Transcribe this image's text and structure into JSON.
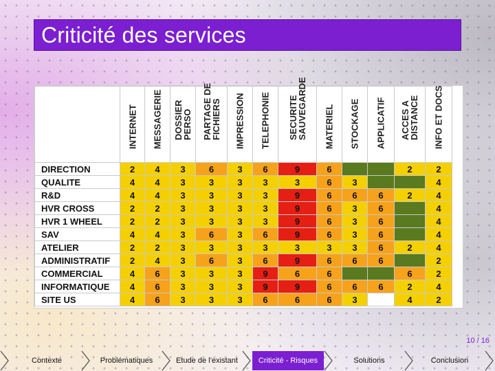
{
  "title": "Criticité des services",
  "page_indicator": "10 / 16",
  "columns": [
    "INTERNET",
    "MESSAGERIE",
    "DOSSIER\nPERSO",
    "PARTAGE DE\nFICHIERS",
    "IMPRESSION",
    "TELEPHONIE",
    "SECURITE\nSAUVEGARDE",
    "MATERIEL",
    "STOCKAGE",
    "APPLICATIF",
    "ACCES A\nDISTANCE",
    "INFO ET DOCS"
  ],
  "rows": [
    {
      "name": "DIRECTION",
      "values": [
        "2",
        "4",
        "3",
        "6",
        "3",
        "6",
        "9",
        "6",
        "",
        "",
        "2",
        "2"
      ]
    },
    {
      "name": "QUALITE",
      "values": [
        "4",
        "4",
        "3",
        "3",
        "3",
        "3",
        "3",
        "6",
        "3",
        "",
        "",
        "4"
      ]
    },
    {
      "name": "R&D",
      "values": [
        "4",
        "4",
        "3",
        "3",
        "3",
        "3",
        "9",
        "6",
        "6",
        "6",
        "2",
        "4"
      ]
    },
    {
      "name": "HVR CROSS",
      "values": [
        "2",
        "2",
        "3",
        "3",
        "3",
        "3",
        "9",
        "6",
        "3",
        "6",
        "",
        "4"
      ]
    },
    {
      "name": "HVR 1 WHEEL",
      "values": [
        "2",
        "2",
        "3",
        "3",
        "3",
        "3",
        "9",
        "6",
        "3",
        "6",
        "",
        "4"
      ]
    },
    {
      "name": "SAV",
      "values": [
        "4",
        "4",
        "3",
        "6",
        "3",
        "6",
        "9",
        "6",
        "3",
        "6",
        "",
        "4"
      ]
    },
    {
      "name": "ATELIER",
      "values": [
        "2",
        "2",
        "3",
        "3",
        "3",
        "3",
        "3",
        "3",
        "3",
        "6",
        "2",
        "4"
      ]
    },
    {
      "name": "ADMINISTRATIF",
      "values": [
        "2",
        "4",
        "3",
        "6",
        "3",
        "6",
        "9",
        "6",
        "6",
        "6",
        "",
        "2"
      ]
    },
    {
      "name": "COMMERCIAL",
      "values": [
        "4",
        "6",
        "3",
        "3",
        "3",
        "9",
        "6",
        "6",
        "",
        "",
        "6",
        "2"
      ]
    },
    {
      "name": "INFORMATIQUE",
      "values": [
        "4",
        "6",
        "3",
        "3",
        "3",
        "9",
        "9",
        "6",
        "6",
        "6",
        "2",
        "4"
      ]
    },
    {
      "name": "SITE US",
      "values": [
        "4",
        "6",
        "3",
        "3",
        "3",
        "6",
        "6",
        "6",
        "3",
        "",
        "4",
        "2"
      ]
    }
  ],
  "colors": {
    "2": "#f5d000",
    "3": "#f5d000",
    "4": "#f5d000",
    "6": "#f7a21b",
    "9": "#e51f13",
    "empty_dark": "#5a7a1f",
    "empty_light": "#ffffff",
    "accent": "#7b1fd1"
  },
  "empty_pattern": [
    [
      0,
      0,
      0,
      0,
      0,
      0,
      0,
      0,
      1,
      1,
      0,
      0
    ],
    [
      0,
      0,
      0,
      0,
      0,
      0,
      0,
      0,
      0,
      1,
      1,
      0
    ],
    [
      0,
      0,
      0,
      0,
      0,
      0,
      0,
      0,
      0,
      0,
      0,
      0
    ],
    [
      0,
      0,
      0,
      0,
      0,
      0,
      0,
      0,
      0,
      0,
      1,
      0
    ],
    [
      0,
      0,
      0,
      0,
      0,
      0,
      0,
      0,
      0,
      0,
      1,
      0
    ],
    [
      0,
      0,
      0,
      0,
      0,
      0,
      0,
      0,
      0,
      0,
      1,
      0
    ],
    [
      0,
      0,
      0,
      0,
      0,
      0,
      0,
      0,
      0,
      0,
      0,
      0
    ],
    [
      0,
      0,
      0,
      0,
      0,
      0,
      0,
      0,
      0,
      0,
      1,
      0
    ],
    [
      0,
      0,
      0,
      0,
      0,
      0,
      0,
      0,
      1,
      1,
      0,
      0
    ],
    [
      0,
      0,
      0,
      0,
      0,
      0,
      0,
      0,
      0,
      0,
      0,
      0
    ],
    [
      0,
      0,
      0,
      0,
      0,
      0,
      0,
      0,
      0,
      2,
      0,
      0
    ]
  ],
  "nav": {
    "items": [
      {
        "label": "Contexte",
        "active": false
      },
      {
        "label": "Problématiques",
        "active": false
      },
      {
        "label": "Etude de l’existant",
        "active": false
      },
      {
        "label": "Criticité - Risques",
        "active": true
      },
      {
        "label": "Solutions",
        "active": false
      },
      {
        "label": "Conclusion",
        "active": false
      }
    ]
  }
}
